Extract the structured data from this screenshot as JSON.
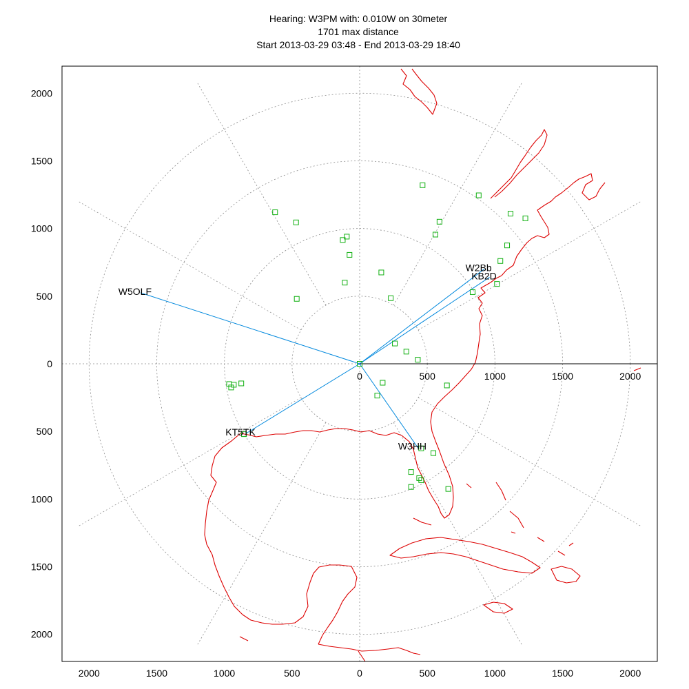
{
  "chart_data": {
    "type": "scatter",
    "title_lines": [
      "Hearing: W3PM with: 0.010W on 30meter",
      "1701 max distance",
      "Start 2013-03-29 03:48 - End 2013-03-29 18:40"
    ],
    "xlim": [
      -2200,
      2200
    ],
    "ylim": [
      -2200,
      2200
    ],
    "x_ticks": [
      -2000,
      -1500,
      -1000,
      -500,
      0,
      500,
      1000,
      1500,
      2000
    ],
    "y_ticks": [
      2000,
      1500,
      1000,
      500,
      0,
      -500,
      -1000,
      -1500,
      -2000
    ],
    "x_tick_labels": [
      "2000",
      "1500",
      "1000",
      "500",
      "0",
      "500",
      "1000",
      "1500",
      "2000"
    ],
    "y_tick_labels": [
      "2000",
      "1500",
      "1000",
      "500",
      "0",
      "500",
      "1000",
      "1500",
      "2000"
    ],
    "origin_axis_labels": [
      "0",
      "500",
      "1000",
      "1500",
      "2000"
    ],
    "range_rings": [
      500,
      1000,
      1500,
      2000
    ],
    "azimuth_spokes_deg": [
      0,
      30,
      60,
      90,
      120,
      150,
      180,
      210,
      240,
      270,
      300,
      330
    ],
    "center": {
      "x": 0,
      "y": 0
    },
    "stations_heard": [
      {
        "call": "W5OLF",
        "x": -1620,
        "y": 525
      },
      {
        "call": "W2Bb",
        "x": 920,
        "y": 700
      },
      {
        "call": "KB2D",
        "x": 960,
        "y": 640
      },
      {
        "call": "KT5TK",
        "x": -840,
        "y": -515
      },
      {
        "call": "W3HH",
        "x": 430,
        "y": -620
      }
    ],
    "spots": [
      {
        "x": 465,
        "y": 1320
      },
      {
        "x": 880,
        "y": 1245
      },
      {
        "x": -625,
        "y": 1120
      },
      {
        "x": -470,
        "y": 1045
      },
      {
        "x": 590,
        "y": 1050
      },
      {
        "x": 560,
        "y": 955
      },
      {
        "x": -95,
        "y": 940
      },
      {
        "x": -125,
        "y": 915
      },
      {
        "x": -75,
        "y": 805
      },
      {
        "x": 1115,
        "y": 1110
      },
      {
        "x": 1225,
        "y": 1075
      },
      {
        "x": 1090,
        "y": 875
      },
      {
        "x": 1040,
        "y": 760
      },
      {
        "x": 160,
        "y": 675
      },
      {
        "x": -110,
        "y": 600
      },
      {
        "x": 1015,
        "y": 590
      },
      {
        "x": 835,
        "y": 530
      },
      {
        "x": -465,
        "y": 480
      },
      {
        "x": 230,
        "y": 485
      },
      {
        "x": 260,
        "y": 150
      },
      {
        "x": 345,
        "y": 90
      },
      {
        "x": 430,
        "y": 30
      },
      {
        "x": 0,
        "y": 0
      },
      {
        "x": 170,
        "y": -140
      },
      {
        "x": 130,
        "y": -235
      },
      {
        "x": 645,
        "y": -160
      },
      {
        "x": -965,
        "y": -150
      },
      {
        "x": -930,
        "y": -155
      },
      {
        "x": -875,
        "y": -145
      },
      {
        "x": -950,
        "y": -175
      },
      {
        "x": -855,
        "y": -520
      },
      {
        "x": 455,
        "y": -625
      },
      {
        "x": 545,
        "y": -660
      },
      {
        "x": 380,
        "y": -800
      },
      {
        "x": 440,
        "y": -845
      },
      {
        "x": 455,
        "y": -860
      },
      {
        "x": 380,
        "y": -910
      },
      {
        "x": 655,
        "y": -925
      }
    ]
  },
  "colors": {
    "coastline": "#dd0000",
    "spot": "#11b011",
    "path": "#0088dd",
    "grid": "#8a8a8a"
  }
}
